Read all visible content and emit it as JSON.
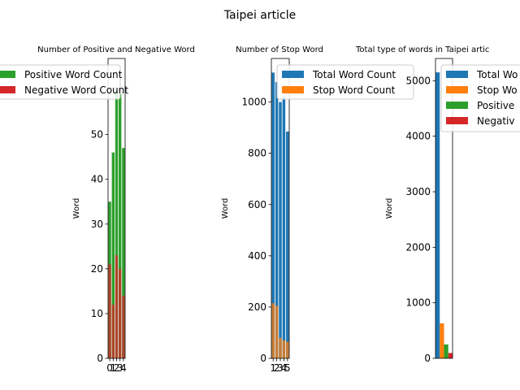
{
  "chart_data": [
    {
      "type": "bar",
      "title": "Number of Positive and Negative Word",
      "ylabel": "Word",
      "xlabel": "",
      "ylim": [
        0,
        67
      ],
      "yticks": [
        0,
        10,
        20,
        30,
        40,
        50
      ],
      "xtick_labels": [
        "0",
        "1",
        "2",
        "3",
        "4"
      ],
      "legend": "upper right",
      "series": [
        {
          "name": "Positive Word Count",
          "color": "#2ca02c",
          "values": [
            35,
            46,
            60,
            59,
            47
          ]
        },
        {
          "name": "Negative Word Count",
          "color": "#d62728",
          "values": [
            21,
            12,
            23,
            20,
            14
          ]
        }
      ]
    },
    {
      "type": "bar",
      "title": "Number of Stop Word",
      "ylabel": "Word",
      "xlabel": "",
      "ylim": [
        0,
        1170
      ],
      "yticks": [
        0,
        200,
        400,
        600,
        800,
        1000
      ],
      "xtick_labels": [
        "1",
        "2",
        "3",
        "4",
        "5"
      ],
      "legend": "upper right",
      "series": [
        {
          "name": "Total Word Count",
          "color": "#1f77b4",
          "values": [
            1115,
            1078,
            1000,
            1022,
            885
          ]
        },
        {
          "name": "Stop Word Count",
          "color": "#ff7f0e",
          "values": [
            215,
            205,
            80,
            70,
            65
          ]
        }
      ]
    },
    {
      "type": "bar",
      "title": "Total type of words in Taipei artic",
      "ylabel": "Word",
      "xlabel": "",
      "ylim": [
        0,
        5400
      ],
      "yticks": [
        0,
        1000,
        2000,
        3000,
        4000,
        5000
      ],
      "legend": "upper right",
      "series": [
        {
          "name": "Total Word Count",
          "legend_label": "Total Wo",
          "color": "#1f77b4",
          "values": [
            5150
          ]
        },
        {
          "name": "Stop Word Count",
          "legend_label": "Stop Wo",
          "color": "#ff7f0e",
          "values": [
            630
          ]
        },
        {
          "name": "Positive Word Count",
          "legend_label": "Positive",
          "color": "#2ca02c",
          "values": [
            250
          ]
        },
        {
          "name": "Negative Word Count",
          "legend_label": "Negativ",
          "color": "#d62728",
          "values": [
            95
          ]
        }
      ]
    }
  ],
  "figure": {
    "suptitle": "Taipei article"
  }
}
